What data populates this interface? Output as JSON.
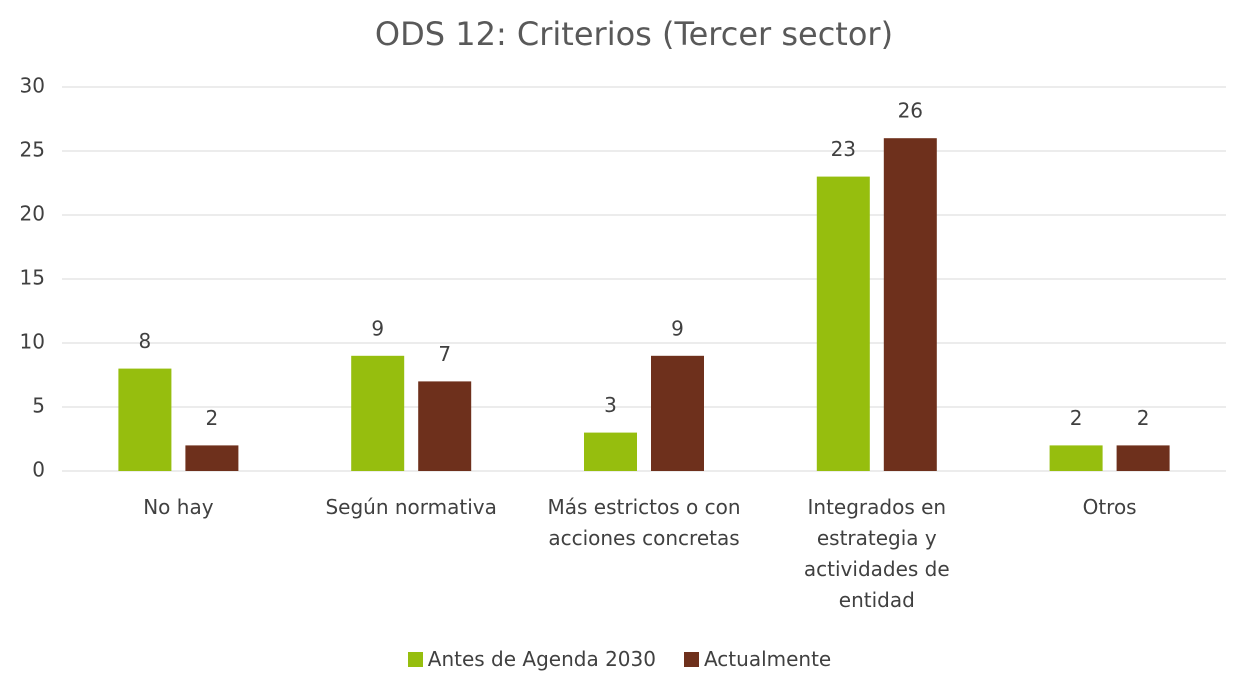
{
  "chart_data": {
    "type": "bar",
    "title": "ODS 12: Criterios (Tercer sector)",
    "categories": [
      "No hay",
      "Según normativa",
      "Más estrictos o con acciones concretas",
      "Integrados en estrategia y actividades de entidad",
      "Otros"
    ],
    "series": [
      {
        "name": "Antes de Agenda 2030",
        "color": "#96be0e",
        "values": [
          8,
          9,
          3,
          23,
          2
        ]
      },
      {
        "name": "Actualmente",
        "color": "#6e301c",
        "values": [
          2,
          7,
          9,
          26,
          2
        ]
      }
    ],
    "ylim": [
      0,
      30
    ],
    "yticks": [
      0,
      5,
      10,
      15,
      20,
      25,
      30
    ],
    "grid": true,
    "legend": "bottom"
  }
}
